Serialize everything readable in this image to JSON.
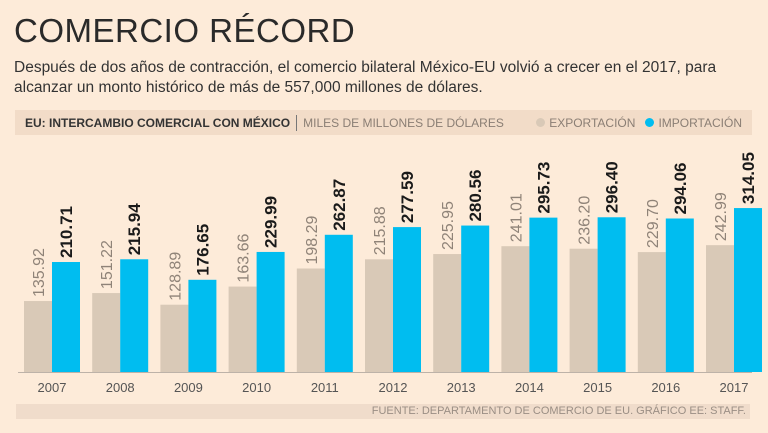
{
  "title": "COMERCIO RÉCORD",
  "subtitle": "Después de dos años de contracción, el comercio bilateral México-EU volvió a crecer en el 2017, para alcanzar un monto histórico de más de 557,000 millones de dólares.",
  "source": "FUENTE: DEPARTAMENTO DE COMERCIO DE EU. GRÁFICO EE: STAFF.",
  "colors": {
    "background": "#fdebd9",
    "export": "#d9c9b7",
    "import": "#00bdf0"
  },
  "chart_data": {
    "type": "bar",
    "title": "EU: INTERCAMBIO COMERCIAL CON MÉXICO",
    "unit_label": "MILES DE MILLONES DE DÓLARES",
    "categories": [
      "2007",
      "2008",
      "2009",
      "2010",
      "2011",
      "2012",
      "2013",
      "2014",
      "2015",
      "2016",
      "2017"
    ],
    "series": [
      {
        "name": "EXPORTACIÓN",
        "values": [
          135.92,
          151.22,
          128.89,
          163.66,
          198.29,
          215.88,
          225.95,
          241.01,
          236.2,
          229.7,
          242.99
        ],
        "labels": [
          "135.92",
          "151.22",
          "128.89",
          "163.66",
          "198.29",
          "215.88",
          "225.95",
          "241.01",
          "236.20",
          "229.70",
          "242.99"
        ]
      },
      {
        "name": "IMPORTACIÓN",
        "values": [
          210.71,
          215.94,
          176.65,
          229.99,
          262.87,
          277.59,
          280.56,
          295.73,
          296.4,
          294.06,
          314.05
        ],
        "labels": [
          "210.71",
          "215.94",
          "176.65",
          "229.99",
          "262.87",
          "277.59",
          "280.56",
          "295.73",
          "296.40",
          "294.06",
          "314.05"
        ]
      }
    ],
    "ylim": [
      0,
      320
    ],
    "legend": "top-right",
    "grid": false
  }
}
